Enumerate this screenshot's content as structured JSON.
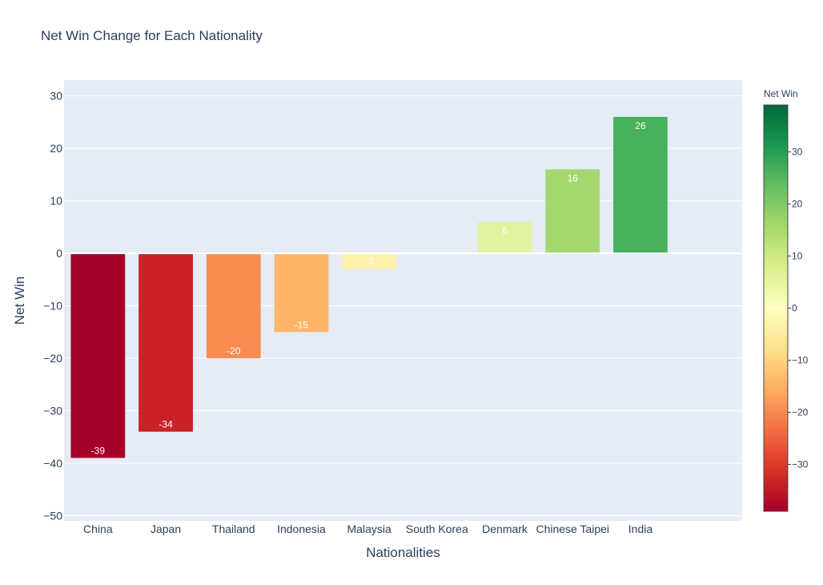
{
  "chart_data": {
    "type": "bar",
    "title": "Net Win Change for Each Nationality",
    "xlabel": "Nationalities",
    "ylabel": "Net Win",
    "categories": [
      "China",
      "Japan",
      "Thailand",
      "Indonesia",
      "Malaysia",
      "South Korea",
      "Denmark",
      "Chinese Taipei",
      "India"
    ],
    "values": [
      -39,
      -34,
      -20,
      -15,
      -3,
      0,
      6,
      16,
      26
    ],
    "data_labels": [
      "-39",
      "-34",
      "-20",
      "-15",
      "-3",
      "",
      "6",
      "16",
      "26"
    ],
    "ylim": [
      -51,
      33
    ],
    "yticks": [
      30,
      20,
      10,
      0,
      -10,
      -20,
      -30,
      -40,
      -50
    ],
    "ytick_labels": [
      "30",
      "20",
      "10",
      "0",
      "−10",
      "−20",
      "−30",
      "−40",
      "−50"
    ],
    "grid": true,
    "colorscale": "RdYlGn",
    "colorbar": {
      "title": "Net Win",
      "range": [
        -39,
        39
      ],
      "ticks": [
        30,
        20,
        10,
        0,
        -10,
        -20,
        -30
      ],
      "tick_labels": [
        "30",
        "20",
        "10",
        "0",
        "−10",
        "−20",
        "−30"
      ]
    },
    "bar_colors": [
      "#a50026",
      "#cb2127",
      "#f88c51",
      "#fdb567",
      "#fff1a8",
      "#ffffbf",
      "#e1f39e",
      "#a4d86e",
      "#48b15b"
    ],
    "plot_background": "#e5ecf6",
    "grid_color": "#ffffff",
    "text_color": "#2a3f5f"
  }
}
